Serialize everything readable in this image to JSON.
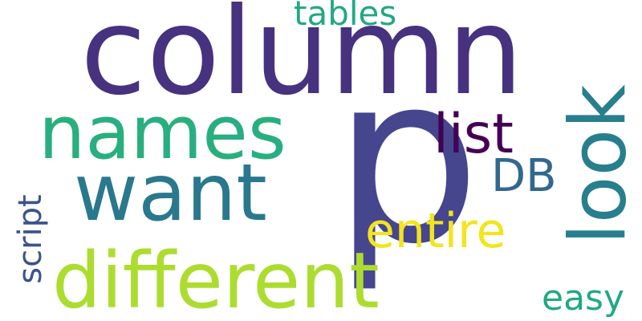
{
  "words": [
    {
      "text": "column",
      "color": "#46327e"
    },
    {
      "text": "p",
      "color": "#46468f"
    },
    {
      "text": "names",
      "color": "#29af7f"
    },
    {
      "text": "want",
      "color": "#2a788e"
    },
    {
      "text": "different",
      "color": "#addc30"
    },
    {
      "text": "look",
      "color": "#277f8e"
    },
    {
      "text": "list",
      "color": "#440154"
    },
    {
      "text": "DB",
      "color": "#31688e"
    },
    {
      "text": "entire",
      "color": "#f2e51d"
    },
    {
      "text": "tables",
      "color": "#22a884"
    },
    {
      "text": "script",
      "color": "#3b528b"
    },
    {
      "text": "easy",
      "color": "#22a884"
    }
  ]
}
